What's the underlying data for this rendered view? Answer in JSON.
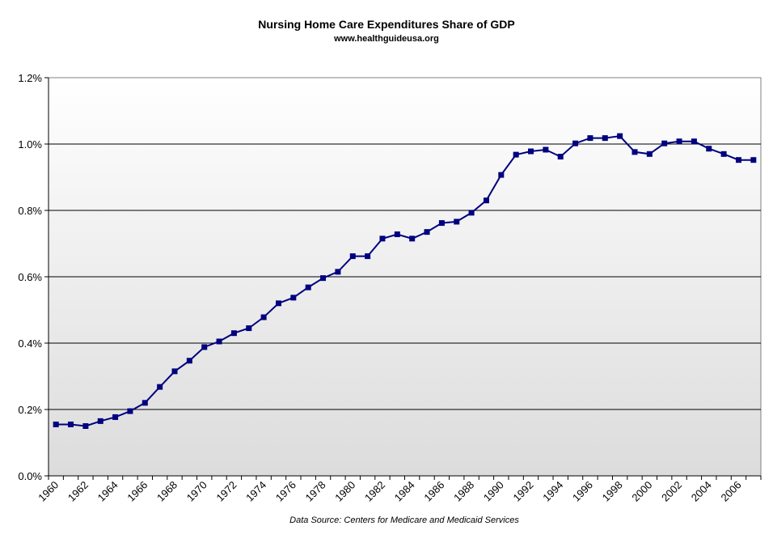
{
  "chart_data": {
    "type": "line",
    "title": "Nursing Home Care Expenditures Share of GDP",
    "subtitle": "www.healthguideusa.org",
    "source": "Data Source: Centers for Medicare and Medicaid Services",
    "xlabel": "",
    "ylabel": "",
    "x_ticks": [
      "1960",
      "1962",
      "1964",
      "1966",
      "1968",
      "1970",
      "1972",
      "1974",
      "1976",
      "1978",
      "1980",
      "1982",
      "1984",
      "1986",
      "1988",
      "1990",
      "1992",
      "1994",
      "1996",
      "1998",
      "2000",
      "2002",
      "2004",
      "2006"
    ],
    "y_ticks": [
      "0.0%",
      "0.2%",
      "0.4%",
      "0.6%",
      "0.8%",
      "1.0%",
      "1.2%"
    ],
    "ylim": [
      0,
      1.2
    ],
    "grid": true,
    "series": [
      {
        "name": "",
        "color": "#000080",
        "x": [
          1960,
          1961,
          1962,
          1963,
          1964,
          1965,
          1966,
          1967,
          1968,
          1969,
          1970,
          1971,
          1972,
          1973,
          1974,
          1975,
          1976,
          1977,
          1978,
          1979,
          1980,
          1981,
          1982,
          1983,
          1984,
          1985,
          1986,
          1987,
          1988,
          1989,
          1990,
          1991,
          1992,
          1993,
          1994,
          1995,
          1996,
          1997,
          1998,
          1999,
          2000,
          2001,
          2002,
          2003,
          2004,
          2005,
          2006,
          2007
        ],
        "values": [
          0.155,
          0.155,
          0.15,
          0.165,
          0.177,
          0.195,
          0.22,
          0.268,
          0.315,
          0.347,
          0.388,
          0.405,
          0.43,
          0.445,
          0.478,
          0.52,
          0.537,
          0.568,
          0.596,
          0.615,
          0.662,
          0.662,
          0.715,
          0.728,
          0.715,
          0.735,
          0.762,
          0.766,
          0.793,
          0.83,
          0.907,
          0.968,
          0.978,
          0.983,
          0.962,
          1.002,
          1.018,
          1.018,
          1.024,
          0.976,
          0.97,
          1.002,
          1.008,
          1.008,
          0.986,
          0.97,
          0.952,
          0.952
        ]
      }
    ]
  }
}
